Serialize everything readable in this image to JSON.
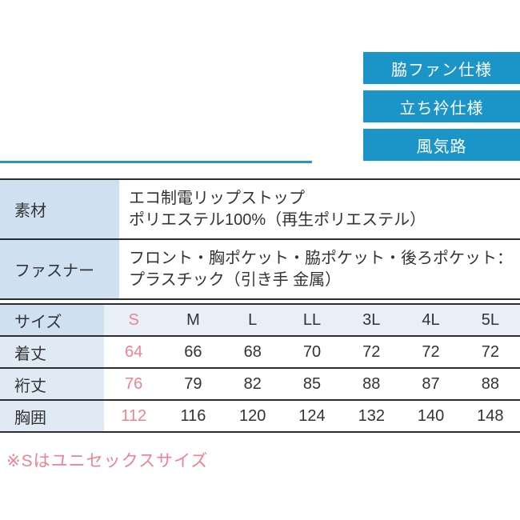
{
  "colors": {
    "badge_blue": "#1b95c8",
    "accent_blue": "#2596cd",
    "header_cell_bg": "#cfe1f0",
    "row_label_bg": "#dfeaf5",
    "size_strip_bg": "#e9eff7",
    "pink": "#ef8292",
    "text": "#333333",
    "border_dark": "#2d2d2d"
  },
  "badges": [
    {
      "label": "脇ファン仕様"
    },
    {
      "label": "立ち衿仕様"
    },
    {
      "label": "風気路"
    }
  ],
  "spec_table": {
    "rows": [
      {
        "header": "素材",
        "lines": [
          "エコ制電リップストップ",
          "ポリエステル100%（再生ポリエステル）"
        ]
      },
      {
        "header": "ファスナー",
        "lines": [
          "フロント・胸ポケット・脇ポケット・後ろポケット：",
          "プラスチック（引き手 金属）"
        ]
      }
    ]
  },
  "size_table": {
    "header_label": "サイズ",
    "sizes": [
      "S",
      "M",
      "L",
      "LL",
      "3L",
      "4L",
      "5L"
    ],
    "highlight_column": "S",
    "rows": [
      {
        "label": "着丈",
        "values": [
          "64",
          "66",
          "68",
          "70",
          "72",
          "72",
          "72"
        ]
      },
      {
        "label": "裄丈",
        "values": [
          "76",
          "79",
          "82",
          "85",
          "88",
          "87",
          "88"
        ]
      },
      {
        "label": "胸囲",
        "values": [
          "112",
          "116",
          "120",
          "124",
          "132",
          "140",
          "148"
        ]
      }
    ]
  },
  "note": "※Sはユニセックスサイズ"
}
